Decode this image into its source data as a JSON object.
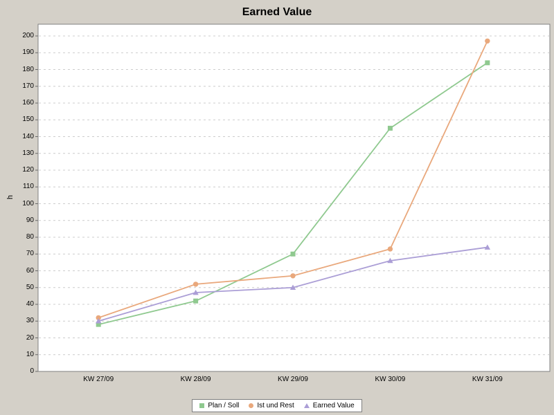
{
  "colors": {
    "background": "#d4d0c8",
    "plot_background": "#ffffff",
    "plot_border": "#808080",
    "grid": "#cccccc",
    "tick_mark": "#666666",
    "text": "#000000",
    "legend_border": "#7f7f7f"
  },
  "chart_data": {
    "type": "line",
    "title": "Earned Value",
    "xlabel": "",
    "ylabel": "h",
    "categories": [
      "KW 27/09",
      "KW 28/09",
      "KW 29/09",
      "KW 30/09",
      "KW 31/09"
    ],
    "series": [
      {
        "name": "Plan / Soll",
        "marker": "square",
        "color": "#8fc98f",
        "values": [
          28,
          42,
          70,
          145,
          184
        ]
      },
      {
        "name": "Ist und Rest",
        "marker": "circle",
        "color": "#e9a87c",
        "values": [
          32,
          52,
          57,
          73,
          197
        ]
      },
      {
        "name": "Earned Value",
        "marker": "triangle",
        "color": "#ab9ed6",
        "values": [
          30,
          47,
          50,
          66,
          74
        ]
      }
    ],
    "ylim": [
      0,
      200
    ],
    "ytick_step": 10,
    "yticks": [
      0,
      10,
      20,
      30,
      40,
      50,
      60,
      70,
      80,
      90,
      100,
      110,
      120,
      130,
      140,
      150,
      160,
      170,
      180,
      190,
      200
    ],
    "grid": "horizontal-dashed",
    "legend_position": "bottom-center"
  }
}
